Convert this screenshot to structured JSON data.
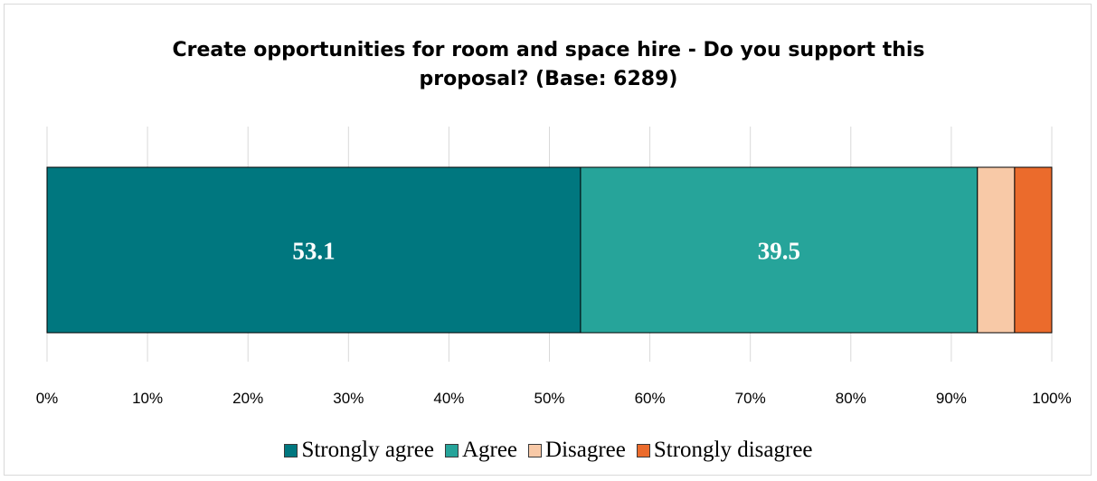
{
  "chart_data": {
    "type": "bar",
    "orientation": "horizontal",
    "stacked": true,
    "title_lines": [
      "Create opportunities for room and space hire -  Do you support this",
      "proposal? (Base: 6289)"
    ],
    "categories": [
      ""
    ],
    "series": [
      {
        "name": "Strongly agree",
        "values": [
          53.1
        ],
        "color": "#00777f",
        "label": "53.1"
      },
      {
        "name": "Agree",
        "values": [
          39.5
        ],
        "color": "#26a49a",
        "label": "39.5"
      },
      {
        "name": "Disagree",
        "values": [
          3.7
        ],
        "color": "#f8c9a7",
        "label": ""
      },
      {
        "name": "Strongly disagree",
        "values": [
          3.7
        ],
        "color": "#eb6b2c",
        "label": ""
      }
    ],
    "xlim": [
      0,
      100
    ],
    "x_ticks": [
      "0%",
      "10%",
      "20%",
      "30%",
      "40%",
      "50%",
      "60%",
      "70%",
      "80%",
      "90%",
      "100%"
    ],
    "grid": true,
    "legend_position": "bottom"
  }
}
